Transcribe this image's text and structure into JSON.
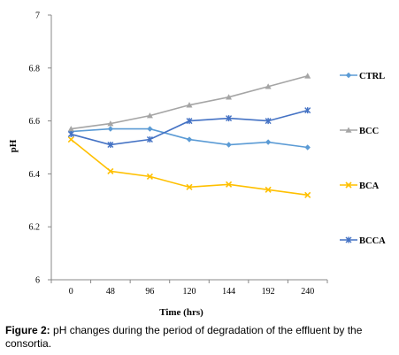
{
  "chart_data": {
    "type": "line",
    "xlabel": "Time (hrs)",
    "ylabel": "pH",
    "categories": [
      "0",
      "48",
      "96",
      "120",
      "144",
      "192",
      "240"
    ],
    "ylim": [
      6,
      7
    ],
    "yticks": [
      "6",
      "6.2",
      "6.4",
      "6.6",
      "6.8",
      "7"
    ],
    "grid": false,
    "legend_position": "right",
    "series": [
      {
        "name": "CTRL",
        "color": "#5b9bd5",
        "marker": "diamond",
        "values": [
          6.56,
          6.57,
          6.57,
          6.53,
          6.51,
          6.52,
          6.5
        ]
      },
      {
        "name": "BCC",
        "color": "#a5a5a5",
        "marker": "triangle",
        "values": [
          6.57,
          6.59,
          6.62,
          6.66,
          6.69,
          6.73,
          6.77
        ]
      },
      {
        "name": "BCA",
        "color": "#ffc000",
        "marker": "x",
        "values": [
          6.53,
          6.41,
          6.39,
          6.35,
          6.36,
          6.34,
          6.32
        ]
      },
      {
        "name": "BCCA",
        "color": "#4472c4",
        "marker": "asterisk",
        "values": [
          6.55,
          6.51,
          6.53,
          6.6,
          6.61,
          6.6,
          6.64
        ]
      }
    ]
  },
  "caption": {
    "label": "Figure 2:",
    "text": "pH changes during the period of degradation of the effluent by the consortia."
  }
}
